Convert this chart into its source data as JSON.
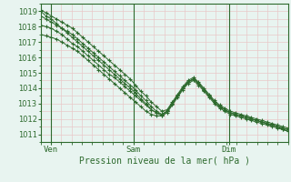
{
  "bg_color": "#e8f4f0",
  "grid_color_minor": "#e8c8c8",
  "grid_color_major": "#e8c8c8",
  "line_color": "#2d6a2d",
  "ylabel_ticks": [
    1011,
    1012,
    1013,
    1014,
    1015,
    1016,
    1017,
    1018,
    1019
  ],
  "ylim": [
    1010.5,
    1019.5
  ],
  "xlabel": "Pression niveau de la mer( hPa )",
  "day_labels": [
    "Ven",
    "Sam",
    "Dim"
  ],
  "day_positions": [
    0.04,
    0.375,
    0.76
  ],
  "xlim": [
    0.0,
    1.0
  ],
  "total_points": 48,
  "line1": [
    1019.0,
    1018.7,
    1018.5,
    1018.2,
    1017.9,
    1017.6,
    1017.3,
    1017.0,
    1016.7,
    1016.4,
    1016.1,
    1015.8,
    1015.5,
    1015.2,
    1014.9,
    1014.6,
    1014.3,
    1014.0,
    1013.7,
    1013.3,
    1013.0,
    1012.6,
    1012.4,
    1012.3,
    1012.5,
    1013.0,
    1013.5,
    1014.0,
    1014.4,
    1014.6,
    1014.3,
    1013.9,
    1013.5,
    1013.1,
    1012.8,
    1012.6,
    1012.4,
    1012.3,
    1012.2,
    1012.1,
    1012.0,
    1011.9,
    1011.8,
    1011.7,
    1011.6,
    1011.5,
    1011.3,
    1011.2
  ],
  "line2": [
    1018.1,
    1018.0,
    1017.9,
    1017.7,
    1017.5,
    1017.2,
    1016.9,
    1016.7,
    1016.4,
    1016.1,
    1015.8,
    1015.5,
    1015.2,
    1014.9,
    1014.7,
    1014.4,
    1014.1,
    1013.8,
    1013.5,
    1013.2,
    1012.9,
    1012.6,
    1012.4,
    1012.2,
    1012.4,
    1012.9,
    1013.4,
    1013.9,
    1014.3,
    1014.5,
    1014.2,
    1013.8,
    1013.4,
    1013.0,
    1012.7,
    1012.5,
    1012.3,
    1012.2,
    1012.1,
    1012.0,
    1011.9,
    1011.8,
    1011.7,
    1011.6,
    1011.5,
    1011.4,
    1011.3,
    1011.2
  ],
  "line3": [
    1017.5,
    1017.4,
    1017.3,
    1017.2,
    1017.0,
    1016.8,
    1016.6,
    1016.4,
    1016.1,
    1015.8,
    1015.5,
    1015.2,
    1014.9,
    1014.6,
    1014.3,
    1014.0,
    1013.7,
    1013.4,
    1013.1,
    1012.8,
    1012.5,
    1012.3,
    1012.2,
    1012.2,
    1012.5,
    1013.0,
    1013.5,
    1014.0,
    1014.4,
    1014.6,
    1014.3,
    1013.9,
    1013.5,
    1013.1,
    1012.8,
    1012.6,
    1012.4,
    1012.3,
    1012.2,
    1012.1,
    1012.0,
    1011.9,
    1011.8,
    1011.7,
    1011.6,
    1011.5,
    1011.4,
    1011.3
  ],
  "line4": [
    1018.7,
    1018.5,
    1018.3,
    1018.1,
    1017.9,
    1017.7,
    1017.5,
    1017.2,
    1016.9,
    1016.6,
    1016.3,
    1016.0,
    1015.7,
    1015.4,
    1015.1,
    1014.8,
    1014.5,
    1014.2,
    1013.9,
    1013.5,
    1013.2,
    1012.8,
    1012.5,
    1012.3,
    1012.5,
    1013.0,
    1013.5,
    1014.0,
    1014.4,
    1014.6,
    1014.3,
    1013.9,
    1013.5,
    1013.1,
    1012.8,
    1012.6,
    1012.4,
    1012.3,
    1012.2,
    1012.1,
    1012.0,
    1011.9,
    1011.8,
    1011.7,
    1011.6,
    1011.5,
    1011.4,
    1011.3
  ],
  "line5": [
    1019.1,
    1018.9,
    1018.7,
    1018.5,
    1018.3,
    1018.1,
    1017.9,
    1017.6,
    1017.3,
    1017.0,
    1016.7,
    1016.4,
    1016.1,
    1015.8,
    1015.5,
    1015.2,
    1014.9,
    1014.6,
    1014.2,
    1013.8,
    1013.5,
    1013.1,
    1012.8,
    1012.5,
    1012.6,
    1013.1,
    1013.6,
    1014.1,
    1014.5,
    1014.7,
    1014.4,
    1014.0,
    1013.6,
    1013.2,
    1012.9,
    1012.7,
    1012.5,
    1012.4,
    1012.3,
    1012.2,
    1012.1,
    1012.0,
    1011.9,
    1011.8,
    1011.7,
    1011.6,
    1011.5,
    1011.4
  ]
}
